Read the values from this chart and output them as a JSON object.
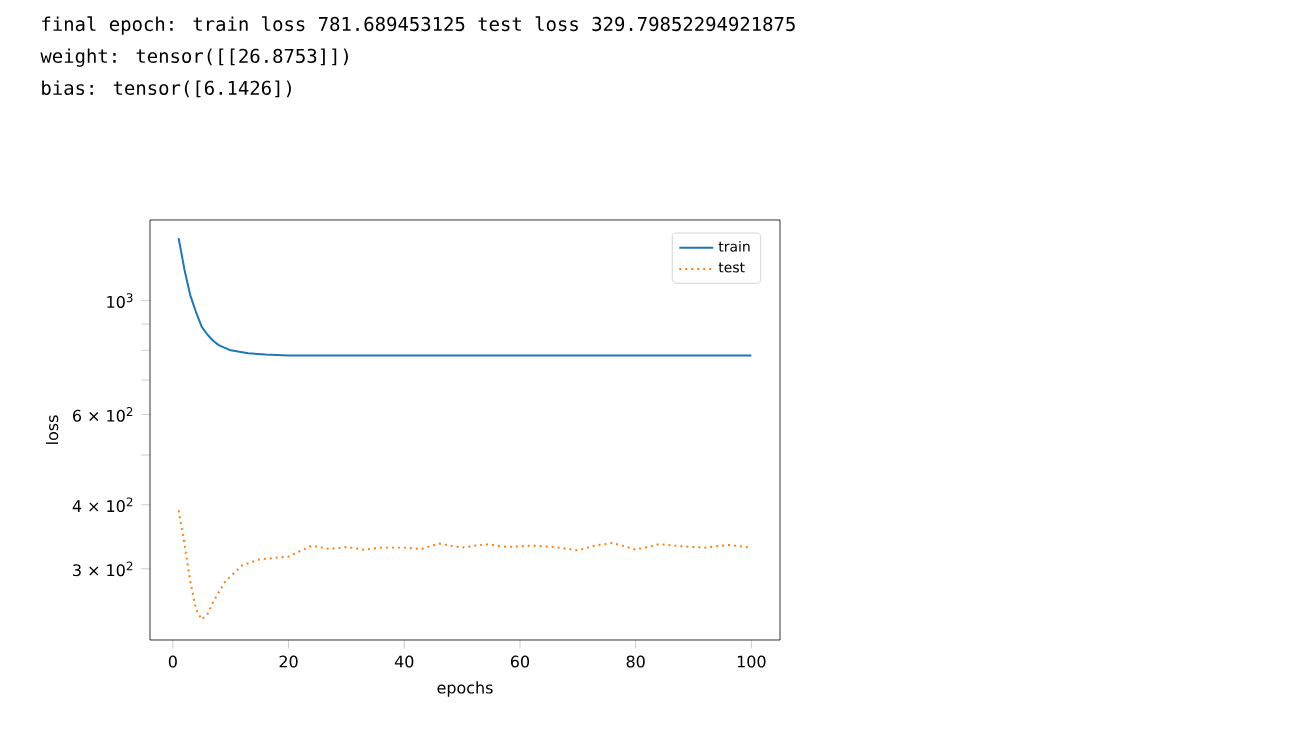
{
  "chart_data": {
    "type": "line",
    "xlabel": "epochs",
    "ylabel": "loss",
    "log": "y",
    "legend": "top right",
    "grid": false,
    "annotations": [
      "final epoch: train loss 781.689453125 test loss 329.79852294921875",
      "weight: tensor([[26.8753]])",
      "bias: tensor([6.1426])"
    ],
    "xlim": [
      -3.95,
      104.95
    ],
    "ylim": [
      218,
      1436
    ],
    "xticks": [
      0,
      20,
      40,
      60,
      80,
      100
    ],
    "yticks": [
      {
        "value": 300,
        "label": "3 × 10$^{2}$"
      },
      {
        "value": 400,
        "label": "4 × 10$^{2}$"
      },
      {
        "value": 500,
        "label": null
      },
      {
        "value": 600,
        "label": "6 × 10$^{2}$"
      },
      {
        "value": 700,
        "label": null
      },
      {
        "value": 800,
        "label": null
      },
      {
        "value": 900,
        "label": null
      },
      {
        "value": 1000,
        "label": "10$^{3}$"
      }
    ],
    "series": [
      {
        "name": "train",
        "color": "#1f77b4",
        "line_style": "solid",
        "x": [
          1,
          2,
          3,
          4,
          5,
          6,
          7,
          8,
          10,
          13,
          16,
          20,
          40,
          60,
          80,
          100
        ],
        "values": [
          1324,
          1150,
          1025,
          950,
          889,
          858,
          834,
          818,
          800,
          790,
          785,
          782,
          782,
          782,
          782,
          781.7
        ]
      },
      {
        "name": "test",
        "color": "#ff7f0e",
        "line_style": "dotted",
        "x": [
          1,
          2,
          3,
          4,
          5,
          6,
          7,
          9,
          12,
          15,
          20,
          24,
          27,
          30,
          33,
          36,
          40,
          43,
          46,
          50,
          54,
          58,
          62,
          66,
          70,
          73,
          76,
          80,
          84,
          88,
          92,
          96,
          100
        ],
        "values": [
          390,
          336,
          284,
          250,
          239,
          245,
          259,
          283,
          305,
          313,
          317,
          333,
          328,
          331,
          327,
          330,
          330,
          328,
          336,
          330,
          335,
          331,
          333,
          331,
          326,
          333,
          337,
          327,
          335,
          332,
          330,
          334,
          329.8
        ]
      }
    ]
  }
}
